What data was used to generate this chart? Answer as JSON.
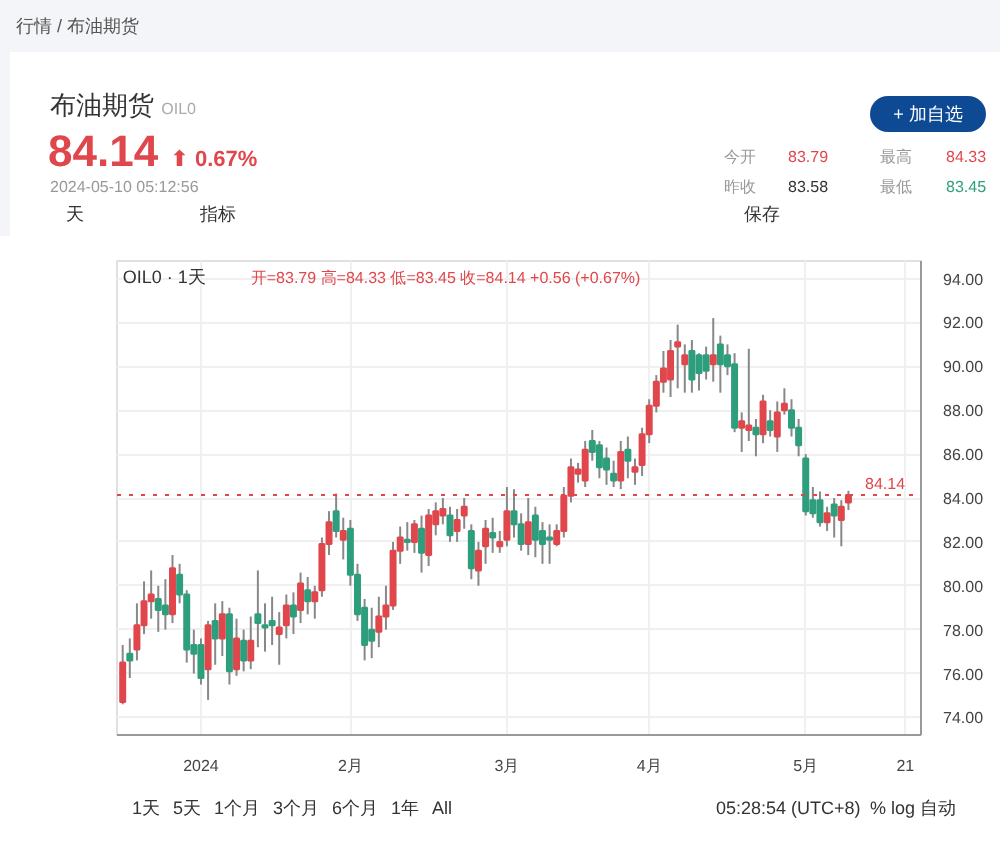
{
  "chart_data": {
    "type": "candlestick",
    "title": "布油期货",
    "annotations": [
      "行情 / 布油期货",
      "OIL0",
      "84.14",
      "⬆ 0.67%",
      "2024-05-10 05:12:56",
      "今开",
      "83.79",
      "最高",
      "84.33",
      "昨收",
      "83.58",
      "最低",
      "83.45",
      "+ 加自选",
      "天",
      "指标",
      "保存",
      "OIL0 · 1天",
      "开=83.79 高=84.33 低=83.45 收=84.14 +0.56 (+0.67%)",
      "1天 5天 1个月 3个月 6个月 1年 All",
      "05:28:54 (UTC+8)",
      "% log 自动"
    ],
    "categories": [
      null,
      null,
      null,
      null,
      null,
      null,
      null,
      null,
      null,
      null,
      null,
      "2024",
      null,
      null,
      null,
      null,
      null,
      null,
      null,
      null,
      null,
      null,
      null,
      null,
      null,
      null,
      null,
      null,
      null,
      null,
      null,
      null,
      "2月",
      null,
      null,
      null,
      null,
      null,
      null,
      null,
      null,
      null,
      null,
      null,
      null,
      null,
      null,
      null,
      null,
      null,
      null,
      null,
      null,
      null,
      "3月",
      null,
      null,
      null,
      null,
      null,
      null,
      null,
      null,
      null,
      null,
      null,
      null,
      null,
      null,
      null,
      null,
      null,
      null,
      null,
      "4月",
      null,
      null,
      null,
      null,
      null,
      null,
      null,
      null,
      null,
      null,
      null,
      null,
      null,
      null,
      null,
      null,
      null,
      null,
      null,
      null,
      null,
      "5月",
      null,
      null,
      null,
      null,
      null,
      null,
      null,
      null,
      null,
      null,
      null,
      null,
      null,
      "21",
      null,
      null
    ],
    "colors": [
      "#e0474c",
      "#2e9e7d",
      "#e0474c",
      "#e0474c",
      "#e0474c",
      "#2e9e7d",
      "#2e9e7d",
      "#e0474c",
      "#2e9e7d",
      "#2e9e7d",
      "#2e9e7d",
      "#2e9e7d",
      "#e0474c",
      "#2e9e7d",
      "#e0474c",
      "#2e9e7d",
      "#e0474c",
      "#2e9e7d",
      "#e0474c",
      "#2e9e7d",
      "#2e9e7d",
      "#2e9e7d",
      "#e0474c",
      "#e0474c",
      "#2e9e7d",
      "#e0474c",
      "#2e9e7d",
      "#e0474c",
      "#e0474c",
      "#e0474c",
      "#2e9e7d",
      "#e0474c",
      "#2e9e7d",
      "#2e9e7d",
      "#2e9e7d",
      "#2e9e7d",
      "#e0474c",
      "#e0474c",
      "#e0474c",
      "#e0474c",
      "#2e9e7d",
      "#e0474c",
      "#2e9e7d",
      "#e0474c",
      "#e0474c",
      "#e0474c",
      "#2e9e7d",
      "#e0474c",
      "#e0474c",
      "#2e9e7d",
      "#e0474c",
      "#e0474c",
      "#2e9e7d",
      "#e0474c",
      "#e0474c",
      "#2e9e7d",
      "#2e9e7d",
      "#e0474c",
      "#2e9e7d",
      "#2e9e7d",
      "#2e9e7d",
      "#e0474c",
      "#e0474c",
      "#e0474c",
      "#e0474c",
      "#e0474c",
      "#2e9e7d",
      "#2e9e7d",
      "#2e9e7d",
      "#2e9e7d",
      "#e0474c",
      "#2e9e7d",
      "#e0474c",
      "#e0474c",
      "#e0474c",
      "#e0474c",
      "#e0474c",
      "#e0474c",
      "#e0474c",
      "#e0474c",
      "#2e9e7d",
      "#2e9e7d",
      "#2e9e7d",
      "#e0474c",
      "#2e9e7d",
      "#2e9e7d",
      "#2e9e7d",
      "#e0474c",
      "#e0474c",
      "#2e9e7d",
      "#e0474c",
      "#2e9e7d",
      "#e0474c",
      "#e0474c",
      "#2e9e7d",
      "#2e9e7d",
      "#2e9e7d",
      "#2e9e7d",
      "#2e9e7d",
      "#e0474c",
      "#2e9e7d",
      "#e0474c",
      "#e0474c",
      null,
      null,
      null,
      null,
      null,
      null,
      null,
      null,
      null,
      null
    ],
    "ohlc": [
      [
        74.7,
        77.3,
        74.6,
        76.5
      ],
      [
        76.9,
        77.6,
        75.8,
        76.6
      ],
      [
        77.1,
        79.2,
        76.6,
        78.2
      ],
      [
        78.2,
        80.2,
        77.8,
        79.3
      ],
      [
        79.3,
        80.7,
        78.5,
        79.6
      ],
      [
        79.4,
        80.0,
        77.9,
        78.9
      ],
      [
        79.1,
        80.3,
        78.0,
        78.7
      ],
      [
        78.7,
        81.4,
        78.3,
        80.8
      ],
      [
        80.5,
        81.0,
        79.2,
        79.6
      ],
      [
        79.6,
        79.8,
        76.5,
        77.1
      ],
      [
        77.3,
        78.0,
        76.0,
        76.9
      ],
      [
        77.3,
        77.6,
        75.5,
        75.8
      ],
      [
        76.2,
        78.4,
        74.8,
        78.2
      ],
      [
        78.4,
        79.2,
        76.4,
        77.6
      ],
      [
        77.6,
        79.3,
        76.8,
        78.7
      ],
      [
        78.7,
        79.0,
        75.5,
        76.1
      ],
      [
        76.2,
        78.5,
        75.9,
        77.6
      ],
      [
        77.5,
        78.0,
        76.1,
        76.6
      ],
      [
        76.6,
        78.6,
        76.2,
        77.5
      ],
      [
        78.7,
        80.7,
        77.2,
        78.3
      ],
      [
        78.2,
        79.2,
        77.0,
        78.1
      ],
      [
        78.4,
        79.5,
        77.3,
        78.2
      ],
      [
        77.8,
        78.8,
        76.4,
        78.1
      ],
      [
        78.2,
        79.6,
        77.6,
        79.1
      ],
      [
        79.1,
        79.7,
        77.8,
        78.6
      ],
      [
        78.9,
        80.6,
        78.3,
        80.1
      ],
      [
        79.8,
        80.4,
        78.7,
        79.3
      ],
      [
        79.3,
        80.0,
        78.5,
        79.7
      ],
      [
        79.8,
        82.2,
        79.5,
        81.9
      ],
      [
        81.9,
        83.4,
        81.4,
        82.9
      ],
      [
        83.4,
        84.2,
        82.2,
        82.5
      ],
      [
        82.1,
        83.1,
        81.2,
        82.5
      ],
      [
        82.6,
        83.0,
        80.0,
        80.5
      ],
      [
        80.5,
        81.0,
        78.4,
        78.7
      ],
      [
        79.0,
        79.4,
        76.6,
        77.3
      ],
      [
        78.0,
        79.0,
        76.7,
        77.5
      ],
      [
        77.9,
        79.5,
        77.2,
        78.6
      ],
      [
        78.6,
        80.0,
        78.0,
        79.1
      ],
      [
        79.1,
        82.0,
        78.9,
        81.6
      ],
      [
        81.6,
        82.7,
        81.0,
        82.2
      ],
      [
        82.1,
        82.9,
        81.6,
        82.0
      ],
      [
        82.0,
        83.0,
        81.5,
        82.8
      ],
      [
        82.6,
        83.2,
        80.6,
        81.5
      ],
      [
        81.4,
        83.5,
        80.9,
        83.2
      ],
      [
        82.8,
        83.8,
        82.3,
        83.4
      ],
      [
        83.2,
        84.0,
        82.8,
        83.5
      ],
      [
        83.2,
        83.6,
        82.0,
        82.3
      ],
      [
        82.5,
        83.5,
        82.0,
        83.0
      ],
      [
        83.2,
        84.0,
        82.6,
        83.6
      ],
      [
        82.5,
        82.8,
        80.3,
        80.8
      ],
      [
        80.7,
        82.0,
        80.0,
        81.6
      ],
      [
        81.8,
        83.0,
        81.0,
        82.6
      ],
      [
        82.4,
        83.1,
        81.5,
        82.2
      ],
      [
        81.8,
        82.5,
        81.5,
        82.0
      ],
      [
        82.1,
        84.5,
        81.8,
        83.4
      ],
      [
        83.4,
        84.4,
        82.2,
        82.8
      ],
      [
        82.8,
        83.3,
        81.6,
        81.9
      ],
      [
        81.9,
        84.0,
        81.4,
        82.9
      ],
      [
        83.2,
        83.6,
        81.3,
        82.1
      ],
      [
        82.5,
        82.9,
        81.0,
        81.9
      ],
      [
        82.2,
        82.8,
        81.0,
        82.1
      ],
      [
        81.9,
        82.8,
        81.8,
        82.5
      ],
      [
        82.5,
        84.5,
        82.2,
        84.1
      ],
      [
        84.1,
        85.8,
        83.8,
        85.4
      ],
      [
        85.1,
        85.6,
        84.7,
        85.3
      ],
      [
        84.8,
        86.6,
        84.5,
        86.2
      ],
      [
        86.6,
        87.1,
        85.7,
        86.1
      ],
      [
        86.4,
        86.6,
        84.9,
        85.4
      ],
      [
        85.8,
        86.3,
        84.6,
        85.3
      ],
      [
        85.1,
        85.7,
        84.5,
        84.8
      ],
      [
        84.8,
        86.6,
        84.4,
        86.1
      ],
      [
        86.2,
        86.8,
        84.9,
        85.7
      ],
      [
        85.2,
        85.8,
        84.6,
        85.4
      ],
      [
        85.5,
        87.2,
        85.0,
        86.9
      ],
      [
        86.9,
        88.5,
        86.5,
        88.2
      ],
      [
        88.2,
        89.6,
        87.9,
        89.3
      ],
      [
        89.3,
        90.7,
        88.8,
        89.9
      ],
      [
        89.4,
        91.2,
        88.6,
        90.7
      ],
      [
        90.9,
        91.9,
        89.0,
        91.1
      ],
      [
        90.1,
        91.0,
        88.8,
        90.5
      ],
      [
        90.7,
        91.2,
        88.8,
        89.4
      ],
      [
        90.5,
        90.6,
        88.9,
        89.7
      ],
      [
        90.5,
        90.9,
        89.4,
        89.8
      ],
      [
        90.1,
        92.2,
        89.3,
        90.5
      ],
      [
        91.0,
        91.4,
        88.8,
        90.1
      ],
      [
        90.5,
        91.0,
        89.6,
        90.0
      ],
      [
        90.1,
        90.6,
        87.0,
        87.2
      ],
      [
        87.2,
        87.9,
        86.1,
        87.5
      ],
      [
        87.1,
        90.8,
        86.6,
        87.3
      ],
      [
        87.2,
        87.6,
        85.9,
        86.9
      ],
      [
        86.9,
        88.7,
        86.5,
        88.4
      ],
      [
        87.5,
        88.0,
        86.8,
        87.1
      ],
      [
        86.8,
        88.4,
        86.1,
        87.9
      ],
      [
        88.0,
        89.0,
        87.8,
        88.3
      ],
      [
        88.0,
        88.5,
        86.8,
        87.2
      ],
      [
        87.2,
        87.6,
        85.9,
        86.4
      ],
      [
        85.8,
        86.0,
        83.2,
        83.4
      ],
      [
        83.9,
        84.5,
        83.1,
        83.3
      ],
      [
        83.9,
        84.3,
        82.7,
        82.9
      ],
      [
        82.9,
        83.6,
        82.5,
        83.3
      ],
      [
        83.7,
        84.0,
        82.2,
        83.2
      ],
      [
        83.0,
        83.9,
        81.8,
        83.6
      ],
      [
        83.79,
        84.33,
        83.45,
        84.14
      ],
      null,
      null,
      null,
      null,
      null,
      null,
      null,
      null,
      null,
      null
    ],
    "ylim": [
      73.2,
      94.8
    ],
    "yticks": [
      {
        "value": 74,
        "label": "74.00"
      },
      {
        "value": 76,
        "label": "76.00"
      },
      {
        "value": 78,
        "label": "78.00"
      },
      {
        "value": 80,
        "label": "80.00"
      },
      {
        "value": 82,
        "label": "82.00"
      },
      {
        "value": 84,
        "label": "84.00"
      },
      {
        "value": 86,
        "label": "86.00"
      },
      {
        "value": 88,
        "label": "88.00"
      },
      {
        "value": 90,
        "label": "90.00"
      },
      {
        "value": 92,
        "label": "92.00"
      },
      {
        "value": 94,
        "label": "94.00"
      }
    ],
    "ref_lines": [
      {
        "axis": "y",
        "value": 84.14,
        "label": "84.14",
        "color": "#e0474c",
        "line_style": "dotted"
      }
    ],
    "grid": true
  }
}
